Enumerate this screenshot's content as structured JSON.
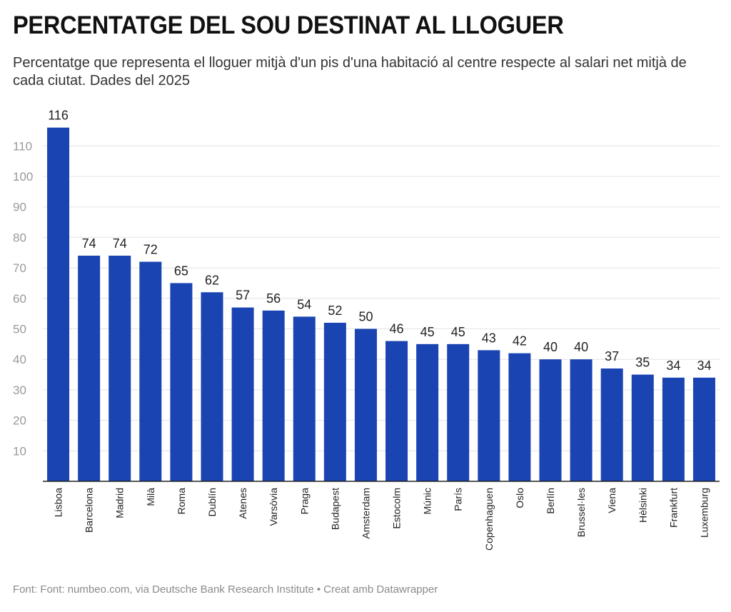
{
  "header": {
    "title": "PERCENTATGE DEL SOU DESTINAT AL LLOGUER",
    "subtitle": "Percentatge que representa el lloguer mitjà d'un pis d'una habitació al centre respecte al salari net mitjà de cada ciutat. Dades del 2025"
  },
  "footer": {
    "source": "Font: Font: numbeo.com, via Deutsche Bank Research Institute",
    "separator": "•",
    "credit": "Creat amb Datawrapper"
  },
  "colors": {
    "bar": "#1a44b2",
    "grid": "#e4e4e4",
    "axis": "#222222",
    "tick_text": "#999999",
    "label_text": "#222222"
  },
  "chart_data": {
    "type": "bar",
    "title": "PERCENTATGE DEL SOU DESTINAT AL LLOGUER",
    "xlabel": "",
    "ylabel": "",
    "ylim": [
      0,
      116
    ],
    "yticks": [
      10,
      20,
      30,
      40,
      50,
      60,
      70,
      80,
      90,
      100,
      110
    ],
    "grid": true,
    "categories": [
      "Lisboa",
      "Barcelona",
      "Madrid",
      "Milà",
      "Roma",
      "Dublín",
      "Atenes",
      "Varsòvia",
      "Praga",
      "Budapest",
      "Amsterdam",
      "Estocolm",
      "Múnic",
      "París",
      "Copenhaguen",
      "Oslo",
      "Berlín",
      "Brussel·les",
      "Viena",
      "Hèlsinki",
      "Frankfurt",
      "Luxemburg"
    ],
    "values": [
      116,
      74,
      74,
      72,
      65,
      62,
      57,
      56,
      54,
      52,
      50,
      46,
      45,
      45,
      43,
      42,
      40,
      40,
      37,
      35,
      34,
      34
    ]
  }
}
